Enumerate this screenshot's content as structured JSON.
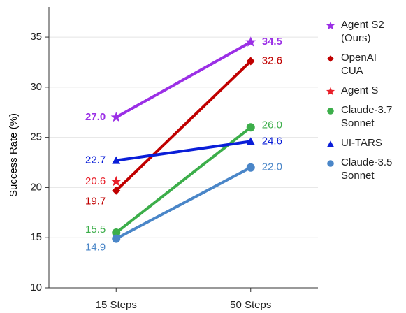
{
  "chart_data": {
    "type": "line",
    "y_label": "Success Rate (%)",
    "categories": [
      "15 Steps",
      "50 Steps"
    ],
    "ylim": [
      10,
      38
    ],
    "yticks": [
      10,
      15,
      20,
      25,
      30,
      35
    ],
    "grid": true,
    "series": [
      {
        "name": "Agent S2 (Ours)",
        "color": "#9b2fe6",
        "marker": "star",
        "bold": true,
        "values": [
          27.0,
          34.5
        ],
        "value_labels": [
          "27.0",
          "34.5"
        ]
      },
      {
        "name": "OpenAI CUA",
        "color": "#c00000",
        "marker": "diamond",
        "values": [
          19.7,
          32.6
        ],
        "value_labels": [
          "19.7",
          "32.6"
        ]
      },
      {
        "name": "Agent S",
        "color": "#e8202a",
        "marker": "star",
        "values": [
          20.6,
          null
        ],
        "value_labels": [
          "20.6",
          null
        ]
      },
      {
        "name": "Claude-3.7 Sonnet",
        "color": "#3cae4a",
        "marker": "circle",
        "values": [
          15.5,
          26.0
        ],
        "value_labels": [
          "15.5",
          "26.0"
        ]
      },
      {
        "name": "UI-TARS",
        "color": "#0a1ed8",
        "marker": "triangle",
        "values": [
          22.7,
          24.6
        ],
        "value_labels": [
          "22.7",
          "24.6"
        ]
      },
      {
        "name": "Claude-3.5 Sonnet",
        "color": "#4a86c8",
        "marker": "circle",
        "values": [
          14.9,
          22.0
        ],
        "value_labels": [
          "14.9",
          "22.0"
        ]
      }
    ]
  }
}
